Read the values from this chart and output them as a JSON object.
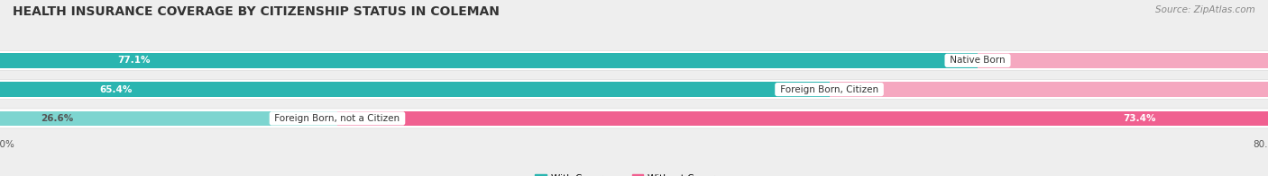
{
  "title": "HEALTH INSURANCE COVERAGE BY CITIZENSHIP STATUS IN COLEMAN",
  "source": "Source: ZipAtlas.com",
  "categories": [
    "Native Born",
    "Foreign Born, Citizen",
    "Foreign Born, not a Citizen"
  ],
  "with_coverage": [
    77.1,
    65.4,
    26.6
  ],
  "without_coverage": [
    22.9,
    34.6,
    73.4
  ],
  "color_with_dark": "#2ab5b0",
  "color_with_light": "#7dd5d0",
  "color_without_dark": "#f06090",
  "color_without_light": "#f5a8c0",
  "bg_color": "#eeeeee",
  "row_bg_color": "#f7f7f7",
  "x_min": -80.0,
  "x_max": 80.0,
  "title_fontsize": 10,
  "source_fontsize": 7.5,
  "bar_height": 0.52,
  "annotation_fontsize": 7.5,
  "label_fontsize": 7.5
}
